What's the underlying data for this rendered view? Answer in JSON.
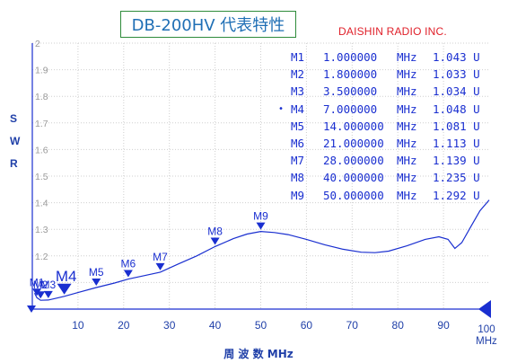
{
  "title": "DB-200HV 代表特性",
  "company": "DAISHIN RADIO INC.",
  "y_axis_letters": [
    "S",
    "W",
    "R"
  ],
  "x_axis_title": "周 波 数 MHz",
  "x_end_label": "100",
  "x_end_unit": "MHz",
  "colors": {
    "trace": "#1a2fd0",
    "grid": "#cfcfcf",
    "axis_text": "#1f3fa8"
  },
  "marker_table": [
    {
      "id": "M1",
      "freq": "1.000000",
      "unit": "MHz",
      "swr": "1.043 U",
      "active": false
    },
    {
      "id": "M2",
      "freq": "1.800000",
      "unit": "MHz",
      "swr": "1.033 U",
      "active": false
    },
    {
      "id": "M3",
      "freq": "3.500000",
      "unit": "MHz",
      "swr": "1.034 U",
      "active": false
    },
    {
      "id": "M4",
      "freq": "7.000000",
      "unit": "MHz",
      "swr": "1.048 U",
      "active": true
    },
    {
      "id": "M5",
      "freq": "14.000000",
      "unit": "MHz",
      "swr": "1.081 U",
      "active": false
    },
    {
      "id": "M6",
      "freq": "21.000000",
      "unit": "MHz",
      "swr": "1.113 U",
      "active": false
    },
    {
      "id": "M7",
      "freq": "28.000000",
      "unit": "MHz",
      "swr": "1.139 U",
      "active": false
    },
    {
      "id": "M8",
      "freq": "40.000000",
      "unit": "MHz",
      "swr": "1.235 U",
      "active": false
    },
    {
      "id": "M9",
      "freq": "50.000000",
      "unit": "MHz",
      "swr": "1.292 U",
      "active": false
    }
  ],
  "chart_data": {
    "type": "line",
    "title": "DB-200HV 代表特性",
    "xlabel": "周 波 数 MHz",
    "ylabel": "SWR",
    "xlim": [
      0,
      100
    ],
    "ylim": [
      1.0,
      2.0
    ],
    "x_ticks": [
      10,
      20,
      30,
      40,
      50,
      60,
      70,
      80,
      90
    ],
    "y_ticks": [
      "1.2",
      "1.3",
      "1.4",
      "1.5",
      "1.6",
      "1.7",
      "1.8",
      "1.9",
      "2"
    ],
    "grid": true,
    "series": [
      {
        "x": [
          0.5,
          1,
          1.8,
          3.5,
          5,
          7,
          10,
          14,
          18,
          21,
          24,
          28,
          32,
          36,
          40,
          44,
          47,
          50,
          53,
          56,
          60,
          64,
          68,
          72,
          75,
          78,
          82,
          86,
          89,
          91,
          92.5,
          94,
          96,
          98,
          100
        ],
        "y": [
          1.06,
          1.043,
          1.033,
          1.034,
          1.04,
          1.048,
          1.062,
          1.081,
          1.098,
          1.113,
          1.124,
          1.139,
          1.17,
          1.2,
          1.235,
          1.265,
          1.282,
          1.292,
          1.288,
          1.28,
          1.262,
          1.242,
          1.225,
          1.214,
          1.212,
          1.218,
          1.238,
          1.262,
          1.272,
          1.262,
          1.228,
          1.25,
          1.31,
          1.37,
          1.41
        ]
      }
    ],
    "markers": [
      {
        "label": "M1",
        "x": 1,
        "y": 1.043
      },
      {
        "label": "M2",
        "x": 1.8,
        "y": 1.033
      },
      {
        "label": "M3",
        "x": 3.5,
        "y": 1.034
      },
      {
        "label": "M4",
        "x": 7,
        "y": 1.048
      },
      {
        "label": "M5",
        "x": 14,
        "y": 1.081
      },
      {
        "label": "M6",
        "x": 21,
        "y": 1.113
      },
      {
        "label": "M7",
        "x": 28,
        "y": 1.139
      },
      {
        "label": "M8",
        "x": 40,
        "y": 1.235
      },
      {
        "label": "M9",
        "x": 50,
        "y": 1.292
      }
    ]
  }
}
